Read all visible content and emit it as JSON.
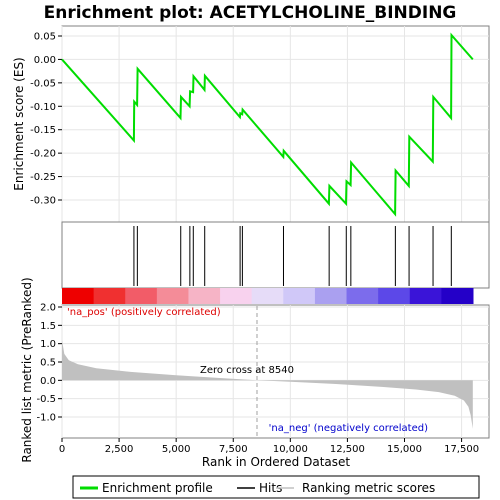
{
  "chart_data": {
    "type": "line",
    "title": "Enrichment plot: ACETYLCHOLINE_BINDING",
    "xlabel": "Rank in Ordered Dataset",
    "ylabel_top": "Enrichment score (ES)",
    "ylabel_bottom": "Ranked list metric (PreRanked)",
    "x_range": [
      0,
      18000
    ],
    "x_ticks": [
      0,
      2500,
      5000,
      7500,
      10000,
      12500,
      15000,
      17500
    ],
    "x_tick_labels": [
      "0",
      "2,500",
      "5,000",
      "7,500",
      "10,000",
      "12,500",
      "15,000",
      "17,500"
    ],
    "es_ylim": [
      -0.35,
      0.07
    ],
    "es_ticks": [
      0.05,
      0.0,
      -0.05,
      -0.1,
      -0.15,
      -0.2,
      -0.25,
      -0.3
    ],
    "es_tick_labels": [
      "0.05",
      "0.00",
      "-0.05",
      "-0.10",
      "-0.15",
      "-0.20",
      "-0.25",
      "-0.30"
    ],
    "metric_ylim": [
      -1.35,
      2.1
    ],
    "metric_ticks": [
      2.0,
      1.5,
      1.0,
      0.5,
      0.0,
      -0.5,
      -1.0
    ],
    "metric_tick_labels": [
      "2.0",
      "1.5",
      "1.0",
      "0.5",
      "0.0",
      "-0.5",
      "-1.0"
    ],
    "hits": [
      3150,
      3300,
      5200,
      5600,
      5750,
      6250,
      7800,
      7900,
      9700,
      11700,
      12450,
      12650,
      14600,
      15200,
      16250,
      17050
    ],
    "es_curve": {
      "x": [
        0,
        3150,
        3160,
        3290,
        3310,
        5190,
        5210,
        5590,
        5610,
        5740,
        5760,
        6240,
        6260,
        7790,
        7810,
        7890,
        7910,
        9690,
        9710,
        11690,
        11710,
        12440,
        12460,
        12640,
        12660,
        14590,
        14610,
        15190,
        15210,
        16240,
        16260,
        17040,
        17060,
        17990
      ],
      "y": [
        0.0,
        -0.173,
        -0.09,
        -0.097,
        -0.02,
        -0.125,
        -0.08,
        -0.1,
        -0.068,
        -0.07,
        -0.036,
        -0.065,
        -0.035,
        -0.123,
        -0.115,
        -0.117,
        -0.107,
        -0.208,
        -0.195,
        -0.308,
        -0.27,
        -0.308,
        -0.26,
        -0.268,
        -0.22,
        -0.33,
        -0.237,
        -0.27,
        -0.165,
        -0.218,
        -0.08,
        -0.125,
        0.052,
        0.0
      ]
    },
    "metric_profile": {
      "x": [
        0,
        100,
        300,
        700,
        1500,
        3000,
        5000,
        7000,
        8540,
        10000,
        12000,
        14000,
        15500,
        16500,
        17200,
        17600,
        17800,
        17900,
        17990
      ],
      "y": [
        1.1,
        0.72,
        0.55,
        0.44,
        0.33,
        0.23,
        0.14,
        0.06,
        0.0,
        -0.04,
        -0.1,
        -0.18,
        -0.25,
        -0.32,
        -0.42,
        -0.55,
        -0.72,
        -0.95,
        -1.32
      ]
    },
    "zero_cross_label": "Zero cross at 8540",
    "zero_cross_x": 8540,
    "pos_label": "'na_pos' (positively correlated)",
    "neg_label": "'na_neg' (negatively correlated)",
    "legend": [
      "Enrichment profile",
      "Hits",
      "Ranking metric scores"
    ],
    "colors": {
      "es_line": "#00dd00",
      "hit_line": "#000000",
      "metric_fill": "#c0c0c0",
      "pos_text": "#dd0000",
      "neg_text": "#0000cc",
      "zero_line": "#a0a0a0"
    },
    "heat_colors": [
      "#ee0000",
      "#f03030",
      "#f25c68",
      "#f48c98",
      "#f6b4c6",
      "#f8d2ee",
      "#e6dcf8",
      "#d0c8f8",
      "#aaa0f0",
      "#7c6cec",
      "#5c48e8",
      "#3a14d8",
      "#2400c8"
    ]
  }
}
